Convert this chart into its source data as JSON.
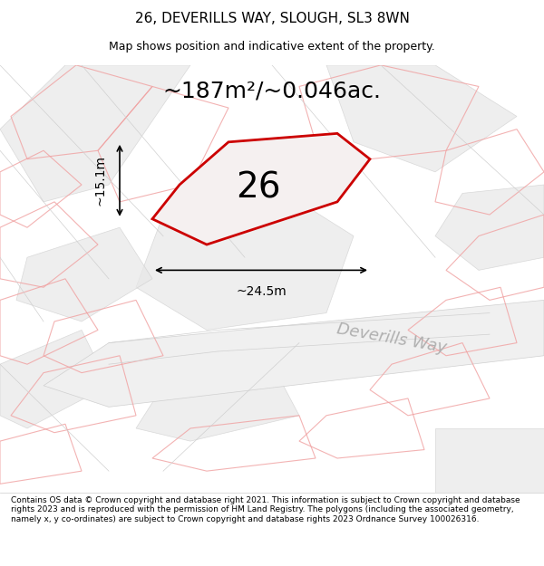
{
  "title_line1": "26, DEVERILLS WAY, SLOUGH, SL3 8WN",
  "title_line2": "Map shows position and indicative extent of the property.",
  "area_text": "~187m²/~0.046ac.",
  "number_label": "26",
  "dim_horizontal": "~24.5m",
  "dim_vertical": "~15.1m",
  "street_label": "Deverills Way",
  "copyright_text": "Contains OS data © Crown copyright and database right 2021. This information is subject to Crown copyright and database rights 2023 and is reproduced with the permission of HM Land Registry. The polygons (including the associated geometry, namely x, y co-ordinates) are subject to Crown copyright and database rights 2023 Ordnance Survey 100026316.",
  "background_color": "#ffffff",
  "map_bg_color": "#f0f0f0",
  "highlight_color": "#cc0000",
  "pink_line_color": "#f0a0a0",
  "title_fontsize": 11,
  "subtitle_fontsize": 9,
  "area_fontsize": 18,
  "number_fontsize": 28,
  "dim_fontsize": 10,
  "street_fontsize": 13,
  "copyright_fontsize": 6.5
}
